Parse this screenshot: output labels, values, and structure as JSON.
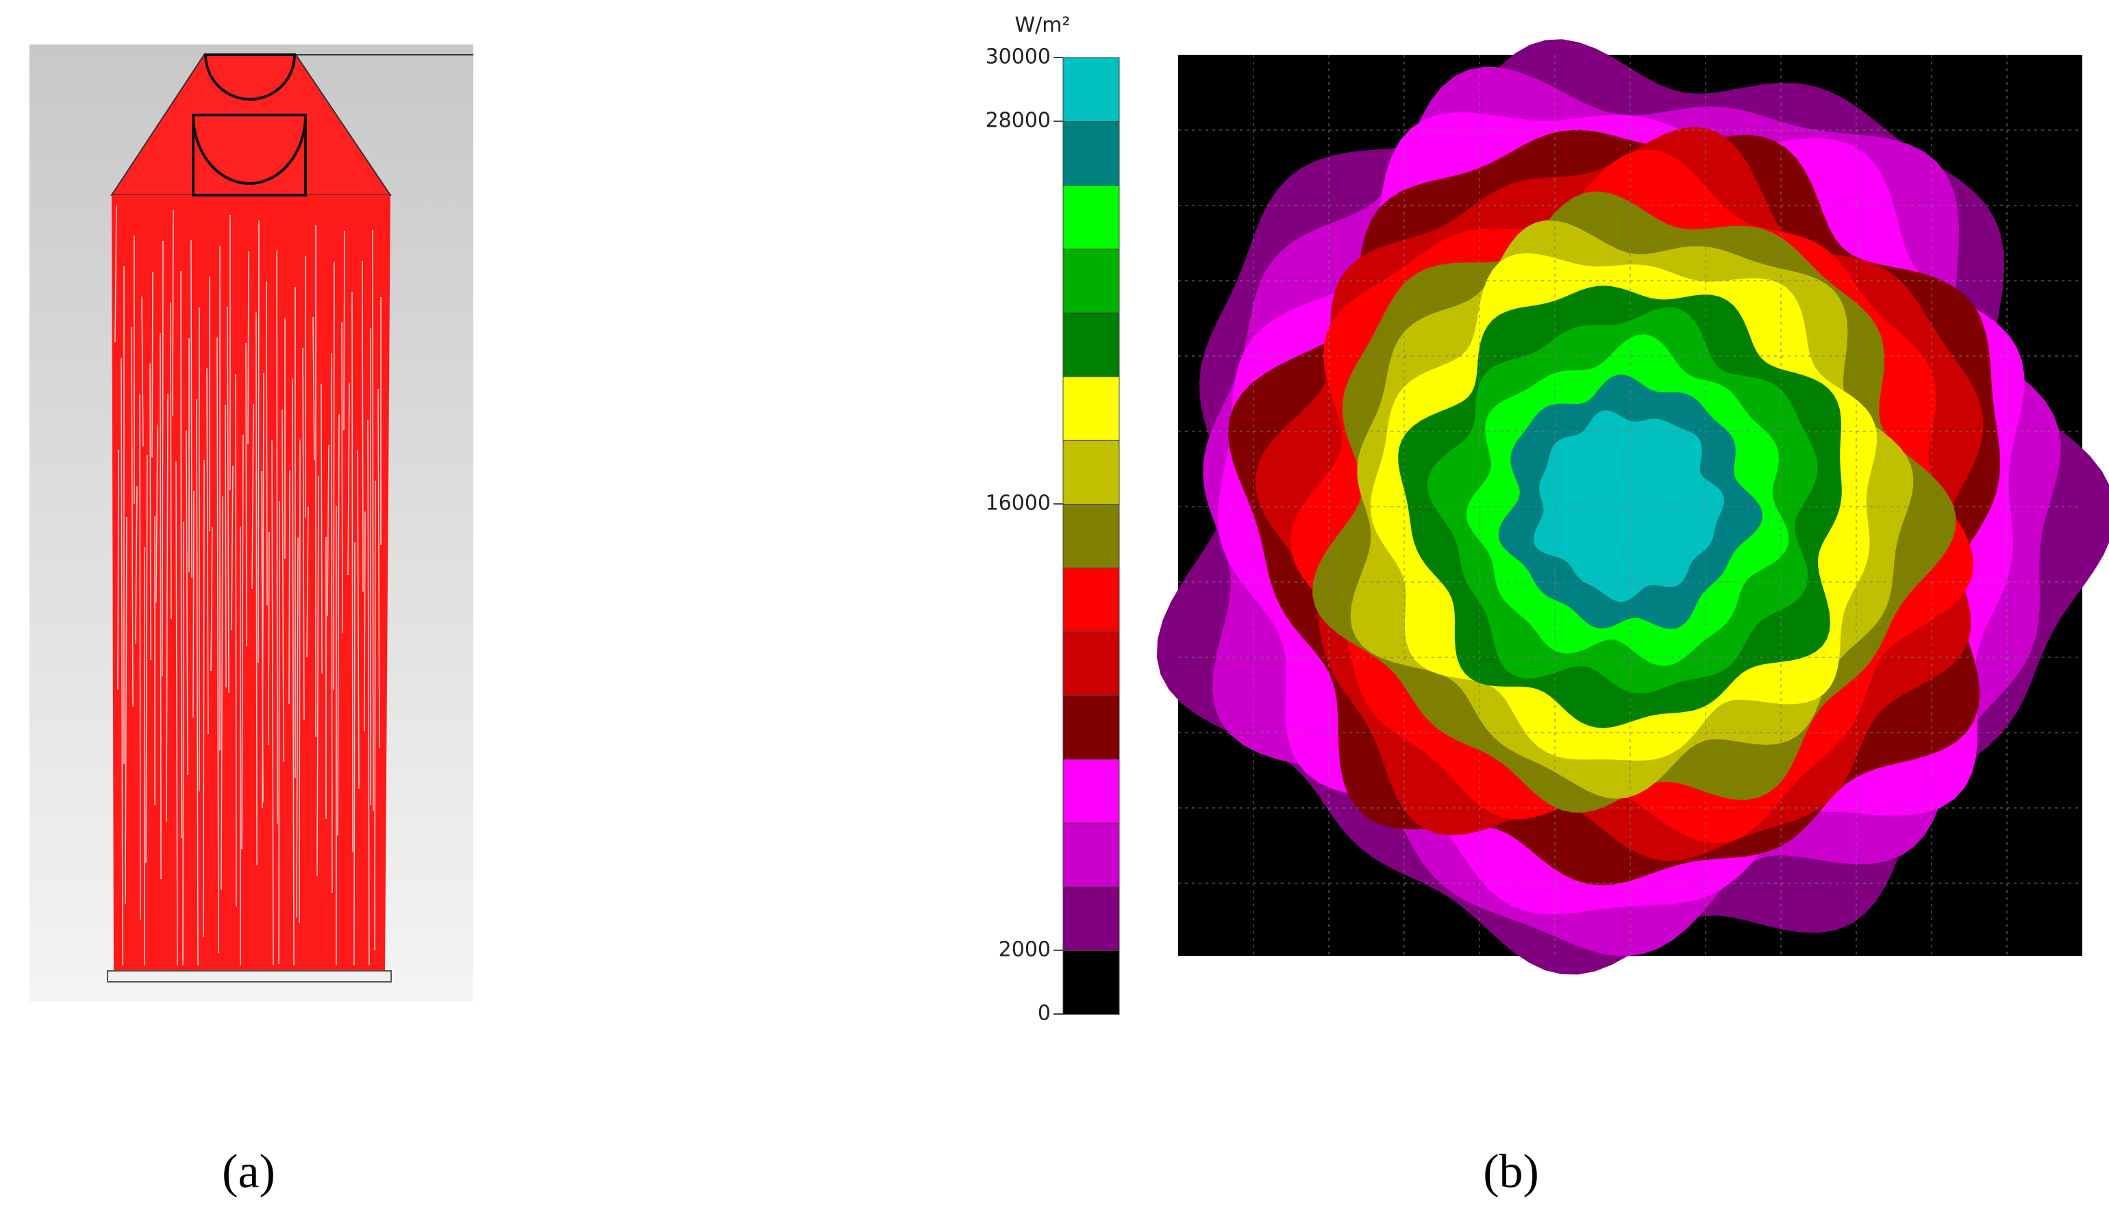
{
  "panel_a": {
    "label": "(a)"
  },
  "panel_b": {
    "label": "(b)",
    "colorbar": {
      "unit": "W/m²",
      "lim": [
        0,
        30000
      ],
      "ticks": [
        0,
        2000,
        16000,
        28000,
        30000
      ],
      "colors": [
        "#000000",
        "#800080",
        "#cc00cc",
        "#ff00ff",
        "#800000",
        "#cc0000",
        "#ff0000",
        "#808000",
        "#c0c000",
        "#ffff00",
        "#008000",
        "#00b000",
        "#00ff00",
        "#008080",
        "#00c0c0"
      ]
    }
  }
}
